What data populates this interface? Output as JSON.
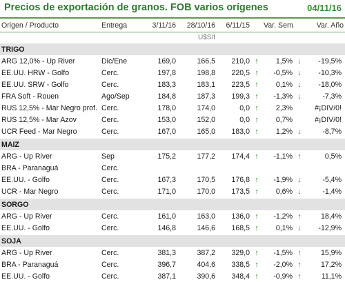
{
  "header": {
    "title": "Precios de exportación de granos. FOB varios orígenes",
    "date": "04/11/16"
  },
  "columns": {
    "origen": "Origen / Producto",
    "entrega": "Entrega",
    "c1": "3/11/16",
    "c2": "28/10/16",
    "c3": "6/11/15",
    "var_sem": "Var. Sem.",
    "var_anio": "Var. Año"
  },
  "units": "U$S/t",
  "sections": [
    {
      "name": "TRIGO",
      "rows": [
        {
          "origen": "ARG 12,0% - Up River",
          "entrega": "Dic/Ene",
          "c1": "169,0",
          "c2": "166,5",
          "c3": "210,0",
          "arrow_c3": "up",
          "var_sem": "1,5%",
          "arrow_sem": "down",
          "var_anio": "-19,5%"
        },
        {
          "origen": "EE.UU. HRW - Golfo",
          "entrega": "Cerc.",
          "c1": "197,8",
          "c2": "198,8",
          "c3": "220,5",
          "arrow_c3": "up",
          "var_sem": "-0,5%",
          "arrow_sem": "down",
          "var_anio": "-10,3%"
        },
        {
          "origen": "EE.UU. SRW - Golfo",
          "entrega": "Cerc.",
          "c1": "183,3",
          "c2": "183,1",
          "c3": "223,5",
          "arrow_c3": "up",
          "var_sem": "0,1%",
          "arrow_sem": "down",
          "var_anio": "-18,0%"
        },
        {
          "origen": "FRA Soft - Rouen",
          "entrega": "Ago/Sep",
          "c1": "184,8",
          "c2": "187,3",
          "c3": "199,3",
          "arrow_c3": "up",
          "var_sem": "-1,3%",
          "arrow_sem": "down",
          "var_anio": "-7,3%"
        },
        {
          "origen": "RUS 12,5% - Mar Negro prof.",
          "entrega": "Cerc.",
          "c1": "178,0",
          "c2": "174,0",
          "c3": "0,0",
          "arrow_c3": "up",
          "var_sem": "2,3%",
          "arrow_sem": "none",
          "var_anio": "#¡DIV/0!"
        },
        {
          "origen": "RUS 12,5% - Mar Azov",
          "entrega": "Cerc.",
          "c1": "153,0",
          "c2": "152,0",
          "c3": "0,0",
          "arrow_c3": "up",
          "var_sem": "0,7%",
          "arrow_sem": "none",
          "var_anio": "#¡DIV/0!"
        },
        {
          "origen": "UCR Feed - Mar Negro",
          "entrega": "Cerc.",
          "c1": "167,0",
          "c2": "165,0",
          "c3": "183,0",
          "arrow_c3": "up",
          "var_sem": "1,2%",
          "arrow_sem": "down",
          "var_anio": "-8,7%"
        }
      ]
    },
    {
      "name": "MAIZ",
      "rows": [
        {
          "origen": "ARG - Up River",
          "entrega": "Sep",
          "c1": "175,2",
          "c2": "177,2",
          "c3": "174,4",
          "arrow_c3": "up",
          "var_sem": "-1,1%",
          "arrow_sem": "up",
          "var_anio": "0,5%"
        },
        {
          "origen": "BRA - Paranaguá",
          "entrega": "Cerc.",
          "c1": "",
          "c2": "",
          "c3": "",
          "arrow_c3": "none",
          "var_sem": "",
          "arrow_sem": "none",
          "var_anio": ""
        },
        {
          "origen": "EE.UU. - Golfo",
          "entrega": "Cerc.",
          "c1": "167,3",
          "c2": "170,5",
          "c3": "176,8",
          "arrow_c3": "up",
          "var_sem": "-1,9%",
          "arrow_sem": "down",
          "var_anio": "-5,4%"
        },
        {
          "origen": "UCR - Mar Negro",
          "entrega": "Cerc.",
          "c1": "171,0",
          "c2": "170,0",
          "c3": "173,5",
          "arrow_c3": "up",
          "var_sem": "0,6%",
          "arrow_sem": "down",
          "var_anio": "-1,4%"
        }
      ]
    },
    {
      "name": "SORGO",
      "rows": [
        {
          "origen": "ARG - Up River",
          "entrega": "Cerc.",
          "c1": "161,0",
          "c2": "163,0",
          "c3": "136,0",
          "arrow_c3": "up",
          "var_sem": "-1,2%",
          "arrow_sem": "up",
          "var_anio": "18,4%"
        },
        {
          "origen": "EE.UU. - Golfo",
          "entrega": "Cerc.",
          "c1": "146,8",
          "c2": "146,6",
          "c3": "168,5",
          "arrow_c3": "up",
          "var_sem": "0,1%",
          "arrow_sem": "down",
          "var_anio": "-12,9%"
        }
      ]
    },
    {
      "name": "SOJA",
      "rows": [
        {
          "origen": "ARG - Up River",
          "entrega": "Cerc.",
          "c1": "381,3",
          "c2": "387,2",
          "c3": "329,0",
          "arrow_c3": "up",
          "var_sem": "-1,5%",
          "arrow_sem": "up",
          "var_anio": "15,9%"
        },
        {
          "origen": "BRA - Paranaguá",
          "entrega": "Cerc.",
          "c1": "396,7",
          "c2": "404,6",
          "c3": "338,5",
          "arrow_c3": "up",
          "var_sem": "-2,0%",
          "arrow_sem": "up",
          "var_anio": "17,2%"
        },
        {
          "origen": "EE.UU. - Golfo",
          "entrega": "Cerc.",
          "c1": "387,1",
          "c2": "390,6",
          "c3": "348,4",
          "arrow_c3": "up",
          "var_sem": "-0,9%",
          "arrow_sem": "up",
          "var_anio": "11,1%"
        }
      ]
    }
  ],
  "colors": {
    "title": "#2f7a2f",
    "up_arrow": "#2e8b2e",
    "down_arrow": "#d23b2e",
    "section_bg": "#e2e2e2"
  }
}
